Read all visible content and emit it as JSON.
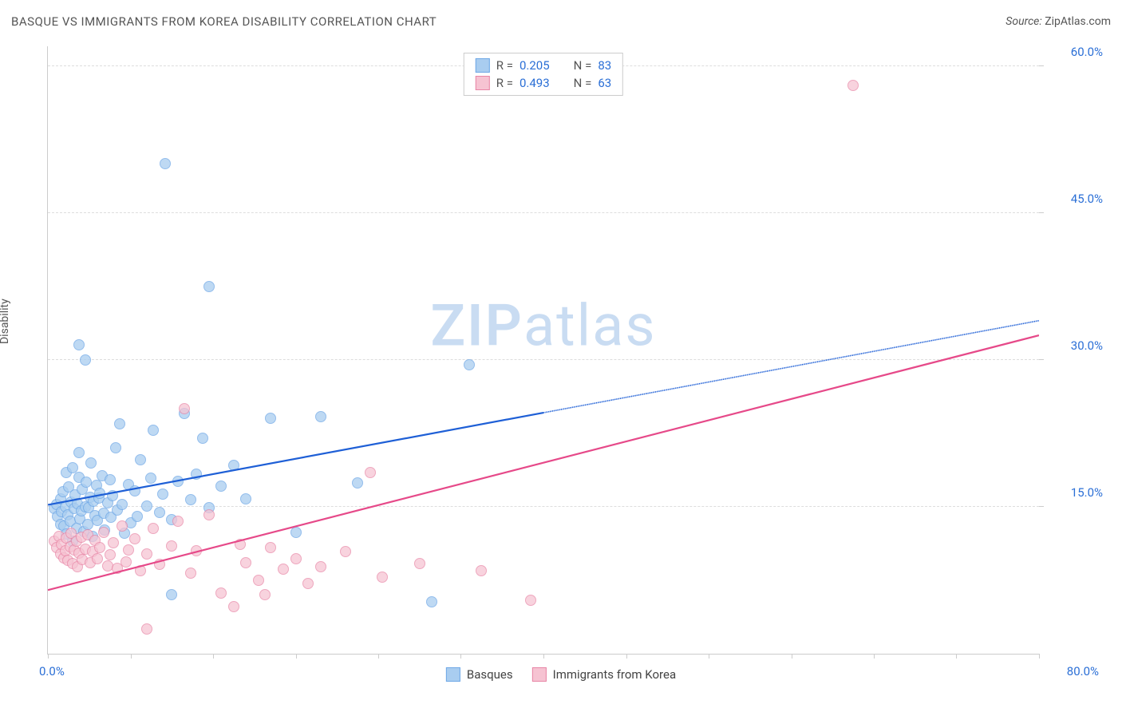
{
  "header": {
    "title": "BASQUE VS IMMIGRANTS FROM KOREA DISABILITY CORRELATION CHART",
    "source_label": "Source:",
    "source_name": "ZipAtlas.com"
  },
  "y_axis_label": "Disability",
  "watermark": {
    "bold": "ZIP",
    "rest": "atlas",
    "color": "#c9dcf2"
  },
  "axis": {
    "xlim": [
      0,
      80
    ],
    "ylim": [
      0,
      62
    ],
    "x_label_min": "0.0%",
    "x_label_max": "80.0%",
    "x_label_color": "#2b6fd6",
    "y_ticks": [
      {
        "v": 15,
        "label": "15.0%"
      },
      {
        "v": 30,
        "label": "30.0%"
      },
      {
        "v": 45,
        "label": "45.0%"
      },
      {
        "v": 60,
        "label": "60.0%"
      }
    ],
    "y_tick_color": "#2b6fd6",
    "x_minor_ticks": [
      0,
      6.67,
      13.33,
      20,
      26.67,
      33.33,
      40,
      46.67,
      53.33,
      60,
      66.67,
      73.33,
      80
    ],
    "grid_color": "#dddddd"
  },
  "series": [
    {
      "name": "Basques",
      "fill": "#a9cdf0",
      "stroke": "#6fa8e6",
      "line_color": "#1e5fd6",
      "line_dash_after_x": 40,
      "marker_radius": 7,
      "opacity": 0.75,
      "R": "0.205",
      "N": "83",
      "regression": {
        "x0": 0,
        "y0": 15.2,
        "x1": 80,
        "y1": 34.0
      },
      "points": [
        [
          0.5,
          14.8
        ],
        [
          0.7,
          15.2
        ],
        [
          0.8,
          14.0
        ],
        [
          1.0,
          15.8
        ],
        [
          1.0,
          13.2
        ],
        [
          1.1,
          14.5
        ],
        [
          1.2,
          16.5
        ],
        [
          1.3,
          13.0
        ],
        [
          1.4,
          15.0
        ],
        [
          1.5,
          18.5
        ],
        [
          1.5,
          12.2
        ],
        [
          1.6,
          14.2
        ],
        [
          1.7,
          17.0
        ],
        [
          1.8,
          13.5
        ],
        [
          1.9,
          15.5
        ],
        [
          2.0,
          19.0
        ],
        [
          2.0,
          11.5
        ],
        [
          2.1,
          14.8
        ],
        [
          2.2,
          16.2
        ],
        [
          2.3,
          12.8
        ],
        [
          2.4,
          15.3
        ],
        [
          2.5,
          18.0
        ],
        [
          2.5,
          20.5
        ],
        [
          2.6,
          13.8
        ],
        [
          2.7,
          14.6
        ],
        [
          2.8,
          16.8
        ],
        [
          2.9,
          12.5
        ],
        [
          3.0,
          15.0
        ],
        [
          3.1,
          17.5
        ],
        [
          3.2,
          13.2
        ],
        [
          3.3,
          14.9
        ],
        [
          3.4,
          16.0
        ],
        [
          3.5,
          19.5
        ],
        [
          3.6,
          12.0
        ],
        [
          3.7,
          15.6
        ],
        [
          3.8,
          14.1
        ],
        [
          3.9,
          17.2
        ],
        [
          4.0,
          13.6
        ],
        [
          4.1,
          15.9
        ],
        [
          4.2,
          16.4
        ],
        [
          4.4,
          18.2
        ],
        [
          4.5,
          14.3
        ],
        [
          4.6,
          12.6
        ],
        [
          4.8,
          15.4
        ],
        [
          5.0,
          17.8
        ],
        [
          5.1,
          13.9
        ],
        [
          5.2,
          16.1
        ],
        [
          5.5,
          21.0
        ],
        [
          5.6,
          14.7
        ],
        [
          5.8,
          23.5
        ],
        [
          6.0,
          15.2
        ],
        [
          6.2,
          12.3
        ],
        [
          6.5,
          17.3
        ],
        [
          6.7,
          13.4
        ],
        [
          7.0,
          16.6
        ],
        [
          7.2,
          14.0
        ],
        [
          7.5,
          19.8
        ],
        [
          8.0,
          15.1
        ],
        [
          8.3,
          17.9
        ],
        [
          8.5,
          22.8
        ],
        [
          9.0,
          14.4
        ],
        [
          9.3,
          16.3
        ],
        [
          2.5,
          31.5
        ],
        [
          3.0,
          30.0
        ],
        [
          10.0,
          13.7
        ],
        [
          10.5,
          17.6
        ],
        [
          11.0,
          24.5
        ],
        [
          11.5,
          15.7
        ],
        [
          12.0,
          18.3
        ],
        [
          12.5,
          22.0
        ],
        [
          13.0,
          14.9
        ],
        [
          14.0,
          17.1
        ],
        [
          9.5,
          50.0
        ],
        [
          15.0,
          19.2
        ],
        [
          16.0,
          15.8
        ],
        [
          18.0,
          24.0
        ],
        [
          13.0,
          37.5
        ],
        [
          20.0,
          12.4
        ],
        [
          22.0,
          24.2
        ],
        [
          25.0,
          17.4
        ],
        [
          31.0,
          5.3
        ],
        [
          10.0,
          6.0
        ],
        [
          34.0,
          29.5
        ]
      ]
    },
    {
      "name": "Immigrants from Korea",
      "fill": "#f6c3d2",
      "stroke": "#e886a6",
      "line_color": "#e64989",
      "line_dash_after_x": 999,
      "marker_radius": 7,
      "opacity": 0.72,
      "R": "0.493",
      "N": "63",
      "regression": {
        "x0": 0,
        "y0": 6.5,
        "x1": 80,
        "y1": 32.5
      },
      "points": [
        [
          0.5,
          11.5
        ],
        [
          0.7,
          10.8
        ],
        [
          0.9,
          12.0
        ],
        [
          1.0,
          10.2
        ],
        [
          1.1,
          11.2
        ],
        [
          1.3,
          9.8
        ],
        [
          1.4,
          10.5
        ],
        [
          1.5,
          11.8
        ],
        [
          1.6,
          9.5
        ],
        [
          1.8,
          10.9
        ],
        [
          1.9,
          12.3
        ],
        [
          2.0,
          9.2
        ],
        [
          2.1,
          10.6
        ],
        [
          2.3,
          11.5
        ],
        [
          2.4,
          8.9
        ],
        [
          2.5,
          10.3
        ],
        [
          2.7,
          11.9
        ],
        [
          2.8,
          9.6
        ],
        [
          3.0,
          10.7
        ],
        [
          3.2,
          12.1
        ],
        [
          3.4,
          9.3
        ],
        [
          3.6,
          10.4
        ],
        [
          3.8,
          11.6
        ],
        [
          4.0,
          9.7
        ],
        [
          4.2,
          10.8
        ],
        [
          4.5,
          12.4
        ],
        [
          4.8,
          9.0
        ],
        [
          5.0,
          10.1
        ],
        [
          5.3,
          11.3
        ],
        [
          5.6,
          8.7
        ],
        [
          6.0,
          13.0
        ],
        [
          6.3,
          9.4
        ],
        [
          6.5,
          10.6
        ],
        [
          7.0,
          11.7
        ],
        [
          7.5,
          8.5
        ],
        [
          8.0,
          10.2
        ],
        [
          8.5,
          12.8
        ],
        [
          9.0,
          9.1
        ],
        [
          10.0,
          11.0
        ],
        [
          10.5,
          13.5
        ],
        [
          11.0,
          25.0
        ],
        [
          11.5,
          8.2
        ],
        [
          12.0,
          10.5
        ],
        [
          13.0,
          14.2
        ],
        [
          14.0,
          6.2
        ],
        [
          15.0,
          4.8
        ],
        [
          15.5,
          11.2
        ],
        [
          16.0,
          9.3
        ],
        [
          17.0,
          7.5
        ],
        [
          17.5,
          6.0
        ],
        [
          18.0,
          10.8
        ],
        [
          19.0,
          8.6
        ],
        [
          20.0,
          9.7
        ],
        [
          21.0,
          7.2
        ],
        [
          22.0,
          8.9
        ],
        [
          24.0,
          10.4
        ],
        [
          26.0,
          18.5
        ],
        [
          27.0,
          7.8
        ],
        [
          8.0,
          2.5
        ],
        [
          30.0,
          9.2
        ],
        [
          35.0,
          8.5
        ],
        [
          39.0,
          5.5
        ],
        [
          65.0,
          58.0
        ]
      ]
    }
  ],
  "legend_top": {
    "r_label": "R =",
    "n_label": "N ="
  },
  "legend_bottom_labels": [
    "Basques",
    "Immigrants from Korea"
  ]
}
